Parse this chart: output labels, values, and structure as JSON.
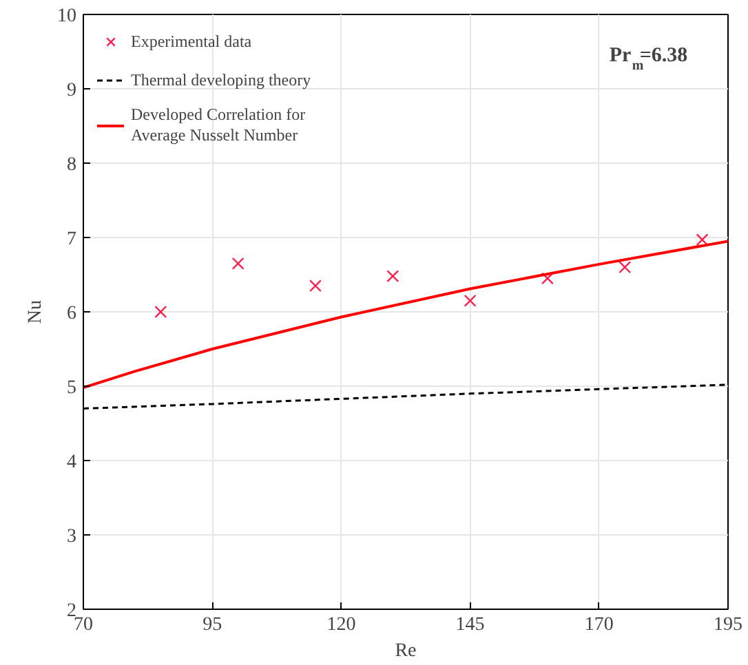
{
  "chart_data": {
    "type": "line",
    "xlabel": "Re",
    "ylabel": "Nu",
    "xlim": [
      70,
      195
    ],
    "ylim": [
      2,
      10
    ],
    "xticks": [
      70,
      95,
      120,
      145,
      170,
      195
    ],
    "yticks": [
      2,
      3,
      4,
      5,
      6,
      7,
      8,
      9,
      10
    ],
    "grid": true,
    "legend": "top left",
    "annotations": [
      "Pr$_{m}$=6.38"
    ],
    "series": [
      {
        "name": "Experimental data",
        "type": "scatter",
        "marker": "cross",
        "color": "#ff2050",
        "x": [
          85,
          100,
          115,
          130,
          145,
          160,
          175,
          190
        ],
        "values": [
          6.0,
          6.65,
          6.35,
          6.48,
          6.15,
          6.45,
          6.6,
          6.97
        ]
      },
      {
        "name": "Thermal developing theory",
        "line_style": "dashed",
        "color": "#000000",
        "x": [
          70,
          95,
          120,
          145,
          170,
          195
        ],
        "values": [
          4.7,
          4.76,
          4.83,
          4.9,
          4.96,
          5.02
        ]
      },
      {
        "name": "Developed Correlation for Average Nusselt Number",
        "line_style": "solid",
        "color": "#ff0000",
        "x": [
          70,
          80,
          95,
          120,
          145,
          170,
          195
        ],
        "values": [
          4.98,
          5.2,
          5.5,
          5.93,
          6.31,
          6.64,
          6.95
        ]
      }
    ]
  }
}
